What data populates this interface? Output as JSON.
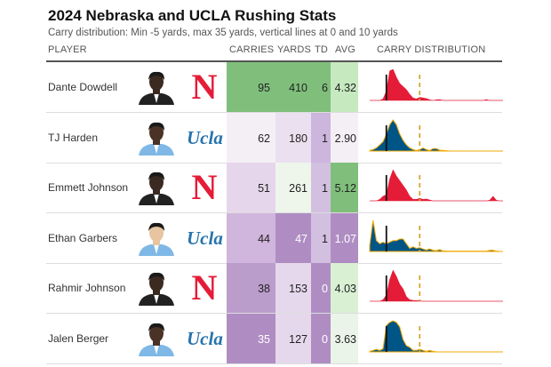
{
  "title": "2024 Nebraska and UCLA Rushing Stats",
  "subtitle": "Carry distribution: Min -5 yards, max 35 yards, vertical lines at 0 and 10 yards",
  "headers": {
    "player": "PLAYER",
    "carries": "CARRIES",
    "yards": "YARDS",
    "td": "TD",
    "avg": "AVG",
    "dist": "CARRY DISTRIBUTION"
  },
  "teams": {
    "nebraska": {
      "logo": "N",
      "color": "#e41c38"
    },
    "ucla": {
      "logo": "Ucla",
      "color": "#2774ae",
      "fill": "#005587",
      "outline": "#f2a900"
    }
  },
  "rows": [
    {
      "name": "Dante Dowdell",
      "team": "nebraska",
      "carries": "95",
      "yards": "410",
      "td": "6",
      "avg": "4.32",
      "colors": [
        "#7fbf7b",
        "#7fbf7b",
        "#7fbf7b",
        "#c7e9c0"
      ],
      "light": [
        0,
        0,
        0,
        0
      ]
    },
    {
      "name": "TJ Harden",
      "team": "ucla",
      "carries": "62",
      "yards": "180",
      "td": "1",
      "avg": "2.90",
      "colors": [
        "#f4eff5",
        "#ebe0ef",
        "#cdb6dd",
        "#f4eff5"
      ],
      "light": [
        0,
        0,
        0,
        0
      ]
    },
    {
      "name": "Emmett Johnson",
      "team": "nebraska",
      "carries": "51",
      "yards": "261",
      "td": "1",
      "avg": "5.12",
      "colors": [
        "#e5d6ec",
        "#eef6ec",
        "#d3bfe0",
        "#7fbf7b"
      ],
      "light": [
        0,
        0,
        0,
        0
      ]
    },
    {
      "name": "Ethan Garbers",
      "team": "ucla",
      "carries": "44",
      "yards": "47",
      "td": "1",
      "avg": "1.07",
      "colors": [
        "#d0b5dc",
        "#af8dc3",
        "#d3bfe0",
        "#af8dc3"
      ],
      "light": [
        0,
        1,
        0,
        1
      ]
    },
    {
      "name": "Rahmir Johnson",
      "team": "nebraska",
      "carries": "38",
      "yards": "153",
      "td": "0",
      "avg": "4.03",
      "colors": [
        "#bb9dcc",
        "#e6d8ec",
        "#af8dc3",
        "#d9f0d3"
      ],
      "light": [
        0,
        0,
        1,
        0
      ]
    },
    {
      "name": "Jalen Berger",
      "team": "ucla",
      "carries": "35",
      "yards": "127",
      "td": "0",
      "avg": "3.63",
      "colors": [
        "#af8dc3",
        "#e6d8ec",
        "#af8dc3",
        "#eaf4e8"
      ],
      "light": [
        1,
        0,
        1,
        0
      ]
    }
  ],
  "chart_data": {
    "type": "area",
    "x_range": [
      -5,
      35
    ],
    "reference_lines": [
      0,
      10
    ],
    "x_step": 1,
    "series": [
      {
        "name": "Dante Dowdell",
        "density": [
          0,
          0,
          0,
          0,
          0.05,
          0.3,
          0.95,
          1,
          0.75,
          0.55,
          0.45,
          0.35,
          0.2,
          0.08,
          0.05,
          0.1,
          0.08,
          0.06,
          0.02,
          0,
          0.02,
          0.03,
          0,
          0,
          0,
          0,
          0,
          0,
          0,
          0,
          0,
          0,
          0,
          0,
          0,
          0.03,
          0,
          0,
          0,
          0,
          0
        ]
      },
      {
        "name": "TJ Harden",
        "density": [
          0.02,
          0.05,
          0.1,
          0.2,
          0.3,
          0.55,
          0.85,
          1,
          0.85,
          0.55,
          0.35,
          0.2,
          0.1,
          0.05,
          0.02,
          0.05,
          0.1,
          0.05,
          0.02,
          0.08,
          0.08,
          0.03,
          0.02,
          0.01,
          0,
          0,
          0,
          0,
          0,
          0,
          0,
          0,
          0,
          0,
          0,
          0,
          0,
          0,
          0,
          0,
          0
        ]
      },
      {
        "name": "Emmett Johnson",
        "density": [
          0,
          0,
          0,
          0.05,
          0.15,
          0.2,
          0.7,
          1,
          0.8,
          0.65,
          0.5,
          0.35,
          0.15,
          0.05,
          0.05,
          0.08,
          0.05,
          0.06,
          0.03,
          0,
          0,
          0,
          0,
          0,
          0,
          0,
          0,
          0,
          0,
          0,
          0,
          0,
          0,
          0,
          0,
          0,
          0.02,
          0.15,
          0.02,
          0,
          0
        ]
      },
      {
        "name": "Ethan Garbers",
        "density": [
          0.2,
          1,
          0.35,
          0.25,
          0.3,
          0.25,
          0.3,
          0.35,
          0.35,
          0.4,
          0.4,
          0.25,
          0.1,
          0.15,
          0.1,
          0.12,
          0.08,
          0.05,
          0.08,
          0.04,
          0.03,
          0.06,
          0.02,
          0.01,
          0.01,
          0.01,
          0.01,
          0.01,
          0.01,
          0.01,
          0.01,
          0.01,
          0.01,
          0.01,
          0.01,
          0.01,
          0.04,
          0.04,
          0.01,
          0,
          0
        ]
      },
      {
        "name": "Rahmir Johnson",
        "density": [
          0,
          0,
          0,
          0,
          0.05,
          0.2,
          0.7,
          1,
          0.8,
          0.55,
          0.4,
          0.15,
          0.05,
          0.03,
          0.02,
          0.02,
          0,
          0,
          0,
          0,
          0,
          0,
          0,
          0,
          0,
          0,
          0,
          0,
          0,
          0,
          0,
          0,
          0,
          0,
          0,
          0,
          0,
          0,
          0,
          0,
          0
        ]
      },
      {
        "name": "Jalen Berger",
        "density": [
          0.02,
          0.05,
          0.08,
          0.05,
          0.1,
          0.85,
          0.95,
          1,
          0.95,
          0.8,
          0.4,
          0.2,
          0.15,
          0.05,
          0.05,
          0.08,
          0.05,
          0.02,
          0.05,
          0.02,
          0,
          0,
          0,
          0,
          0,
          0,
          0,
          0,
          0,
          0,
          0,
          0,
          0,
          0,
          0,
          0,
          0,
          0,
          0,
          0,
          0
        ]
      }
    ]
  }
}
